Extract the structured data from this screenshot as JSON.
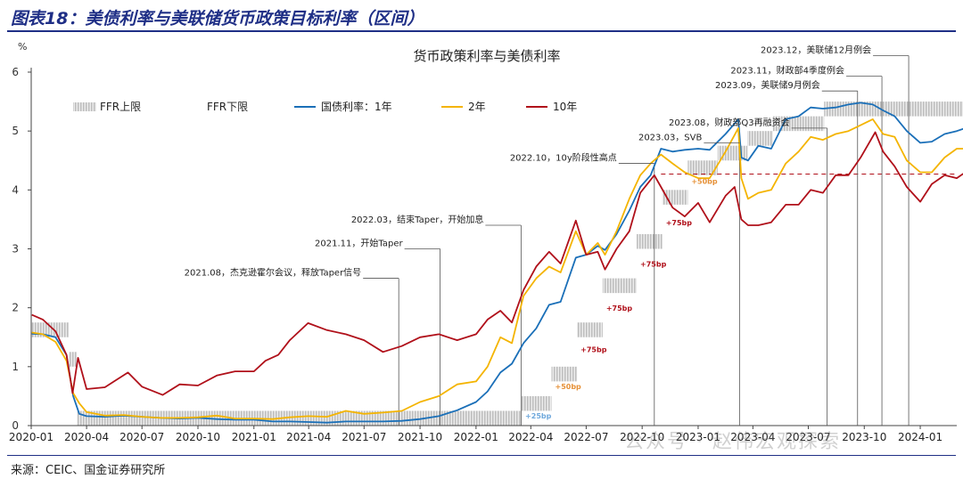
{
  "figure_title": "图表18：美债利率与美联储货币政策目标利率（区间）",
  "source": "来源：CEIC、国金证券研究所",
  "watermark": "公众号 · 赵伟宏观探索",
  "chart_data": {
    "type": "line",
    "title": "货币政策利率与美债利率",
    "ylabel": "%",
    "ylim": [
      0,
      6
    ],
    "yticks": [
      0,
      1,
      2,
      3,
      4,
      5,
      6
    ],
    "xlim": [
      "2020-01",
      "2024-03"
    ],
    "xticks": [
      "2020-01",
      "2020-04",
      "2020-07",
      "2020-10",
      "2021-01",
      "2021-04",
      "2021-07",
      "2021-10",
      "2022-01",
      "2022-04",
      "2022-07",
      "2022-10",
      "2023-01",
      "2023-04",
      "2023-07",
      "2023-10",
      "2024-01"
    ],
    "legend_position": "top",
    "legend": [
      "FFR上限",
      "FFR下限",
      "国债利率：1年",
      "2年",
      "10年"
    ],
    "colors": {
      "ffr": "#c8c8c8",
      "y1": "#1a6fb8",
      "y2": "#f4b400",
      "y10": "#b0101a",
      "ref": "#b0101a",
      "annot": "#222222"
    },
    "reference_line": {
      "value": 4.27,
      "style": "dashed"
    },
    "ffr": [
      {
        "start": "2020-01",
        "end": "2020-03-03",
        "upper": 1.75,
        "lower": 1.5
      },
      {
        "start": "2020-03-03",
        "end": "2020-03-16",
        "upper": 1.25,
        "lower": 1.0
      },
      {
        "start": "2020-03-16",
        "end": "2022-03-17",
        "upper": 0.25,
        "lower": 0.0
      },
      {
        "start": "2022-03-17",
        "end": "2022-05-05",
        "upper": 0.5,
        "lower": 0.25
      },
      {
        "start": "2022-05-05",
        "end": "2022-06-16",
        "upper": 1.0,
        "lower": 0.75
      },
      {
        "start": "2022-06-16",
        "end": "2022-07-28",
        "upper": 1.75,
        "lower": 1.5
      },
      {
        "start": "2022-07-28",
        "end": "2022-09-22",
        "upper": 2.5,
        "lower": 2.25
      },
      {
        "start": "2022-09-22",
        "end": "2022-11-03",
        "upper": 3.25,
        "lower": 3.0
      },
      {
        "start": "2022-11-03",
        "end": "2022-12-15",
        "upper": 4.0,
        "lower": 3.75
      },
      {
        "start": "2022-12-15",
        "end": "2023-02-02",
        "upper": 4.5,
        "lower": 4.25
      },
      {
        "start": "2023-02-02",
        "end": "2023-03-23",
        "upper": 4.75,
        "lower": 4.5
      },
      {
        "start": "2023-03-23",
        "end": "2023-05-04",
        "upper": 5.0,
        "lower": 4.75
      },
      {
        "start": "2023-05-04",
        "end": "2023-07-27",
        "upper": 5.25,
        "lower": 5.0
      },
      {
        "start": "2023-07-27",
        "end": "2024-03-20",
        "upper": 5.5,
        "lower": 5.25
      }
    ],
    "hike_labels": [
      {
        "date": "2022-03-17",
        "value": 0.12,
        "text": "+25bp",
        "color": "#6fa8dc"
      },
      {
        "date": "2022-05-05",
        "value": 0.62,
        "text": "+50bp",
        "color": "#e69138"
      },
      {
        "date": "2022-06-16",
        "value": 1.25,
        "text": "+75bp",
        "color": "#b0101a"
      },
      {
        "date": "2022-07-28",
        "value": 1.95,
        "text": "+75bp",
        "color": "#b0101a"
      },
      {
        "date": "2022-09-22",
        "value": 2.7,
        "text": "+75bp",
        "color": "#b0101a"
      },
      {
        "date": "2022-11-03",
        "value": 3.4,
        "text": "+75bp",
        "color": "#b0101a"
      },
      {
        "date": "2022-12-15",
        "value": 4.1,
        "text": "+50bp",
        "color": "#e69138"
      }
    ],
    "annotations": [
      {
        "date": "2021-08-27",
        "value": 2.5,
        "text": "2021.08，杰克逊霍尔会议，释放Taper信号"
      },
      {
        "date": "2021-11-03",
        "value": 3.0,
        "text": "2021.11，开始Taper"
      },
      {
        "date": "2022-03-16",
        "value": 3.4,
        "text": "2022.03，结束Taper，开始加息"
      },
      {
        "date": "2022-10-21",
        "value": 4.45,
        "text": "2022.10，10y阶段性高点"
      },
      {
        "date": "2023-03-10",
        "value": 4.8,
        "text": "2023.03，SVB"
      },
      {
        "date": "2023-08-01",
        "value": 5.05,
        "text": "2023.08，财政部Q3再融资会"
      },
      {
        "date": "2023-09-20",
        "value": 5.68,
        "text": "2023.09，美联储9月例会"
      },
      {
        "date": "2023-10-30",
        "value": 5.93,
        "text": "2023.11，财政部4季度例会"
      },
      {
        "date": "2023-12-13",
        "value": 6.28,
        "text": "2023.12，美联储12月例会"
      }
    ],
    "series": [
      {
        "name": "国债利率：1年",
        "key": "y1",
        "x": [
          "2020-01-02",
          "2020-01-20",
          "2020-02-10",
          "2020-02-28",
          "2020-03-10",
          "2020-03-20",
          "2020-04-01",
          "2020-05-01",
          "2020-06-01",
          "2020-07-01",
          "2020-08-01",
          "2020-09-01",
          "2020-10-01",
          "2020-11-01",
          "2020-12-01",
          "2021-01-01",
          "2021-02-01",
          "2021-03-01",
          "2021-04-01",
          "2021-05-01",
          "2021-06-01",
          "2021-07-01",
          "2021-08-01",
          "2021-09-01",
          "2021-10-01",
          "2021-11-01",
          "2021-12-01",
          "2022-01-01",
          "2022-01-20",
          "2022-02-10",
          "2022-03-01",
          "2022-03-20",
          "2022-04-10",
          "2022-05-01",
          "2022-05-20",
          "2022-06-14",
          "2022-07-01",
          "2022-07-20",
          "2022-08-01",
          "2022-08-20",
          "2022-09-10",
          "2022-09-28",
          "2022-10-15",
          "2022-11-01",
          "2022-11-20",
          "2022-12-10",
          "2023-01-01",
          "2023-01-20",
          "2023-02-15",
          "2023-03-08",
          "2023-03-13",
          "2023-03-24",
          "2023-04-10",
          "2023-05-01",
          "2023-05-25",
          "2023-06-15",
          "2023-07-05",
          "2023-07-25",
          "2023-08-15",
          "2023-09-05",
          "2023-09-25",
          "2023-10-15",
          "2023-11-01",
          "2023-11-20",
          "2023-12-10",
          "2024-01-01",
          "2024-01-20",
          "2024-02-10",
          "2024-03-01",
          "2024-03-15"
        ],
        "values": [
          1.56,
          1.55,
          1.5,
          1.2,
          0.5,
          0.2,
          0.16,
          0.15,
          0.17,
          0.15,
          0.13,
          0.12,
          0.13,
          0.11,
          0.1,
          0.1,
          0.07,
          0.07,
          0.06,
          0.05,
          0.07,
          0.07,
          0.07,
          0.08,
          0.11,
          0.16,
          0.26,
          0.4,
          0.58,
          0.9,
          1.05,
          1.4,
          1.65,
          2.05,
          2.1,
          2.85,
          2.9,
          3.05,
          2.98,
          3.25,
          3.65,
          4.05,
          4.25,
          4.7,
          4.65,
          4.68,
          4.7,
          4.68,
          4.95,
          5.2,
          4.55,
          4.5,
          4.75,
          4.7,
          5.2,
          5.25,
          5.4,
          5.38,
          5.4,
          5.45,
          5.48,
          5.45,
          5.35,
          5.25,
          5.0,
          4.8,
          4.82,
          4.95,
          5.0,
          5.05
        ]
      },
      {
        "name": "2年",
        "key": "y2",
        "x": [
          "2020-01-02",
          "2020-01-20",
          "2020-02-10",
          "2020-02-28",
          "2020-03-10",
          "2020-03-20",
          "2020-04-01",
          "2020-05-01",
          "2020-06-01",
          "2020-07-01",
          "2020-08-01",
          "2020-09-01",
          "2020-10-01",
          "2020-11-01",
          "2020-12-01",
          "2021-01-01",
          "2021-02-01",
          "2021-03-01",
          "2021-04-01",
          "2021-05-01",
          "2021-06-01",
          "2021-07-01",
          "2021-08-01",
          "2021-09-01",
          "2021-10-01",
          "2021-11-01",
          "2021-12-01",
          "2022-01-01",
          "2022-01-20",
          "2022-02-10",
          "2022-03-01",
          "2022-03-20",
          "2022-04-10",
          "2022-05-01",
          "2022-05-20",
          "2022-06-14",
          "2022-07-01",
          "2022-07-20",
          "2022-08-01",
          "2022-08-20",
          "2022-09-10",
          "2022-09-28",
          "2022-10-15",
          "2022-11-01",
          "2022-11-20",
          "2022-12-10",
          "2023-01-01",
          "2023-01-20",
          "2023-02-15",
          "2023-03-08",
          "2023-03-13",
          "2023-03-24",
          "2023-04-10",
          "2023-05-01",
          "2023-05-25",
          "2023-06-15",
          "2023-07-05",
          "2023-07-25",
          "2023-08-15",
          "2023-09-05",
          "2023-09-25",
          "2023-10-15",
          "2023-11-01",
          "2023-11-20",
          "2023-12-10",
          "2024-01-01",
          "2024-01-20",
          "2024-02-10",
          "2024-03-01",
          "2024-03-15"
        ],
        "values": [
          1.58,
          1.55,
          1.42,
          1.1,
          0.55,
          0.38,
          0.23,
          0.17,
          0.18,
          0.15,
          0.13,
          0.13,
          0.14,
          0.17,
          0.12,
          0.12,
          0.11,
          0.14,
          0.16,
          0.15,
          0.25,
          0.2,
          0.22,
          0.25,
          0.4,
          0.5,
          0.7,
          0.75,
          1.0,
          1.5,
          1.4,
          2.2,
          2.5,
          2.7,
          2.6,
          3.3,
          2.9,
          3.1,
          2.9,
          3.3,
          3.85,
          4.25,
          4.45,
          4.6,
          4.45,
          4.3,
          4.2,
          4.2,
          4.65,
          5.05,
          4.2,
          3.85,
          3.95,
          4.0,
          4.45,
          4.65,
          4.9,
          4.85,
          4.95,
          5.0,
          5.1,
          5.2,
          4.95,
          4.9,
          4.5,
          4.3,
          4.3,
          4.55,
          4.7,
          4.7
        ]
      },
      {
        "name": "10年",
        "key": "y10",
        "x": [
          "2020-01-02",
          "2020-01-20",
          "2020-02-10",
          "2020-02-28",
          "2020-03-09",
          "2020-03-18",
          "2020-04-01",
          "2020-05-01",
          "2020-06-08",
          "2020-07-01",
          "2020-08-04",
          "2020-09-01",
          "2020-10-01",
          "2020-11-01",
          "2020-12-01",
          "2021-01-01",
          "2021-01-20",
          "2021-02-10",
          "2021-03-01",
          "2021-03-31",
          "2021-05-01",
          "2021-06-01",
          "2021-07-01",
          "2021-08-01",
          "2021-09-01",
          "2021-10-01",
          "2021-11-01",
          "2021-12-01",
          "2022-01-01",
          "2022-01-20",
          "2022-02-10",
          "2022-03-01",
          "2022-03-20",
          "2022-04-10",
          "2022-05-01",
          "2022-05-20",
          "2022-06-14",
          "2022-07-01",
          "2022-07-20",
          "2022-08-01",
          "2022-08-20",
          "2022-09-10",
          "2022-09-28",
          "2022-10-21",
          "2022-11-01",
          "2022-11-20",
          "2022-12-10",
          "2023-01-01",
          "2023-01-20",
          "2023-02-15",
          "2023-03-02",
          "2023-03-13",
          "2023-03-24",
          "2023-04-10",
          "2023-05-01",
          "2023-05-25",
          "2023-06-15",
          "2023-07-05",
          "2023-07-25",
          "2023-08-15",
          "2023-09-05",
          "2023-09-25",
          "2023-10-19",
          "2023-11-01",
          "2023-11-20",
          "2023-12-10",
          "2024-01-01",
          "2024-01-20",
          "2024-02-10",
          "2024-03-01",
          "2024-03-15"
        ],
        "values": [
          1.88,
          1.8,
          1.6,
          1.2,
          0.55,
          1.15,
          0.62,
          0.65,
          0.9,
          0.66,
          0.52,
          0.7,
          0.68,
          0.85,
          0.92,
          0.92,
          1.1,
          1.2,
          1.45,
          1.74,
          1.62,
          1.55,
          1.45,
          1.25,
          1.35,
          1.5,
          1.55,
          1.45,
          1.55,
          1.8,
          1.95,
          1.75,
          2.3,
          2.7,
          2.95,
          2.75,
          3.48,
          2.9,
          2.95,
          2.65,
          3.0,
          3.3,
          3.95,
          4.25,
          4.05,
          3.7,
          3.55,
          3.78,
          3.45,
          3.9,
          4.05,
          3.5,
          3.4,
          3.4,
          3.45,
          3.75,
          3.75,
          4.0,
          3.95,
          4.25,
          4.25,
          4.55,
          4.98,
          4.65,
          4.4,
          4.05,
          3.8,
          4.1,
          4.25,
          4.2,
          4.3
        ]
      }
    ]
  }
}
